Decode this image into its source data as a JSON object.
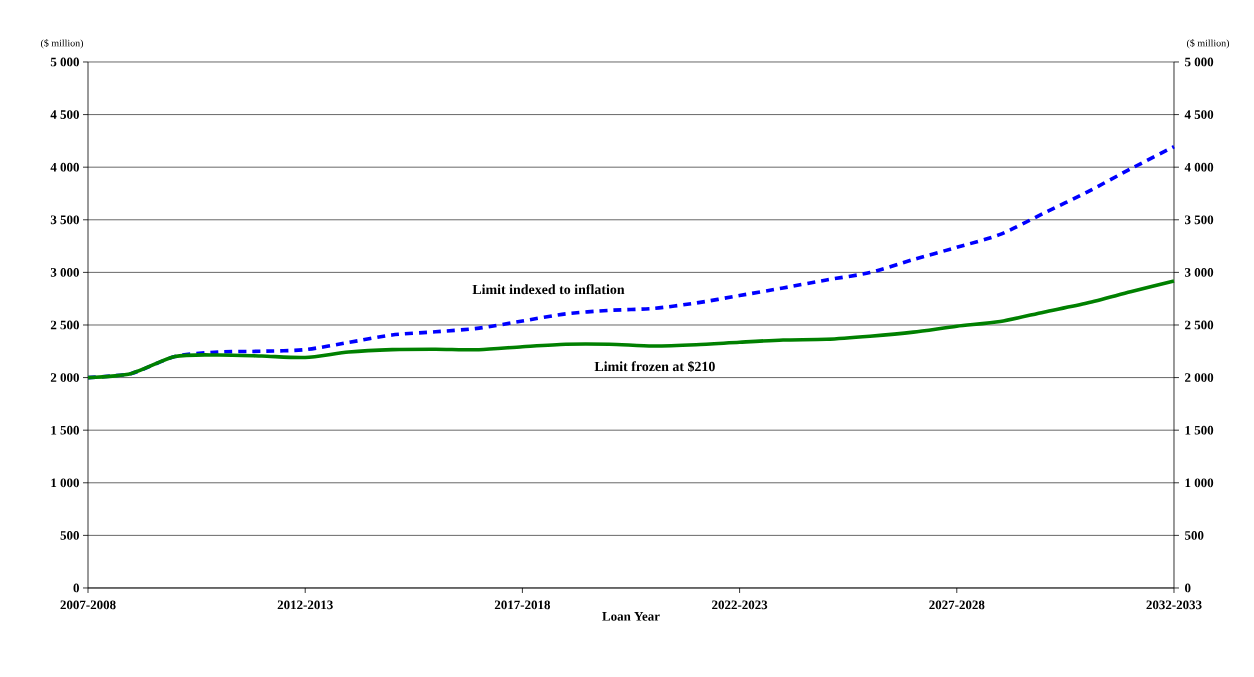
{
  "chart_data": {
    "type": "line",
    "xlabel": "Loan Year",
    "ylabel": "($ million)",
    "y2label": "($ million)",
    "categories": [
      "2007-2008",
      null,
      null,
      null,
      null,
      "2012-2013",
      null,
      null,
      null,
      null,
      "2017-2018",
      null,
      null,
      null,
      null,
      "2022-2023",
      null,
      null,
      null,
      null,
      "2027-2028",
      null,
      null,
      null,
      null,
      "2032-2033"
    ],
    "series": [
      {
        "name": "Limit indexed to inflation",
        "color": "#0000ff",
        "line_style": "dashed",
        "values": [
          2000,
          2040,
          2200,
          2243,
          2250,
          2266,
          2334,
          2405,
          2435,
          2470,
          2538,
          2606,
          2639,
          2657,
          2709,
          2780,
          2852,
          2928,
          2998,
          3122,
          3238,
          3361,
          3562,
          3763,
          3984,
          4195
        ]
      },
      {
        "name": "Limit frozen at $210",
        "color": "#008000",
        "line_style": "solid",
        "values": [
          2000,
          2040,
          2200,
          2215,
          2205,
          2191,
          2243,
          2266,
          2270,
          2265,
          2293,
          2317,
          2317,
          2300,
          2312,
          2336,
          2357,
          2364,
          2393,
          2432,
          2488,
          2533,
          2622,
          2709,
          2815,
          2918
        ]
      }
    ],
    "ylim": [
      0,
      5000
    ],
    "yticks": [
      0,
      500,
      {
        "value": 1000,
        "label": "1 000"
      },
      {
        "value": 1500,
        "label": "1 500"
      },
      {
        "value": 2000,
        "label": "2 000"
      },
      {
        "value": 2500,
        "label": "2 500"
      },
      {
        "value": 3000,
        "label": "3 000"
      },
      {
        "value": 3500,
        "label": "3 500"
      },
      {
        "value": 4000,
        "label": "4 000"
      },
      {
        "value": 4500,
        "label": "4 500"
      },
      {
        "value": 5000,
        "label": "5 000"
      }
    ],
    "y2lim": [
      0,
      5000
    ],
    "y2ticks": [
      0,
      500,
      {
        "value": 1000,
        "label": "1 000"
      },
      {
        "value": 1500,
        "label": "1 500"
      },
      {
        "value": 2000,
        "label": "2 000"
      },
      {
        "value": 2500,
        "label": "2 500"
      },
      {
        "value": 3000,
        "label": "3 000"
      },
      {
        "value": 3500,
        "label": "3 500"
      },
      {
        "value": 4000,
        "label": "4 000"
      },
      {
        "value": 4500,
        "label": "4 500"
      },
      {
        "value": 5000,
        "label": "5 000"
      }
    ],
    "grid": "y",
    "legend": false,
    "marker": "none"
  }
}
